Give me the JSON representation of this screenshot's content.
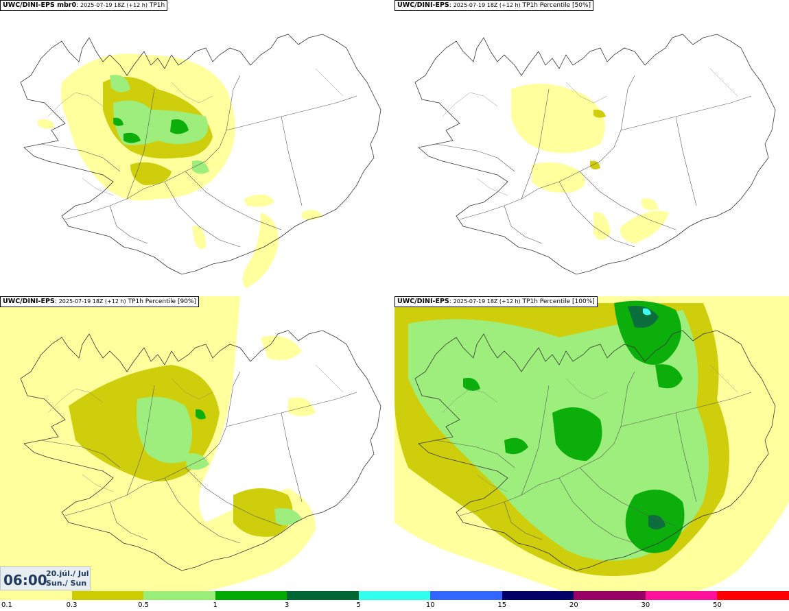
{
  "panels": [
    {
      "model": "UWC/DINI-EPS mbr0",
      "run": "2025-07-19 18Z (+12 h)",
      "field": "TP1h"
    },
    {
      "model": "UWC/DINI-EPS",
      "run": "2025-07-19 18Z (+12 h)",
      "field": "TP1h Percentile [50%]"
    },
    {
      "model": "UWC/DINI-EPS",
      "run": "2025-07-19 18Z (+12 h)",
      "field": "TP1h Percentile [90%]"
    },
    {
      "model": "UWC/DINI-EPS",
      "run": "2025-07-19 18Z (+12 h)",
      "field": "TP1h Percentile [100%]"
    }
  ],
  "time_box": {
    "time": "06:00",
    "date_line1": "20.júl./ Jul",
    "date_line2": "Sun./ Sun"
  },
  "legend": {
    "colors": [
      "#ffff99",
      "#cccc00",
      "#99ee77",
      "#00aa00",
      "#006633",
      "#33ffee",
      "#3366ff",
      "#000066",
      "#990066",
      "#ff1199",
      "#ff0000"
    ],
    "labels": [
      "0.1",
      "0.3",
      "0.5",
      "1",
      "3",
      "5",
      "10",
      "15",
      "20",
      "30",
      "50"
    ]
  }
}
